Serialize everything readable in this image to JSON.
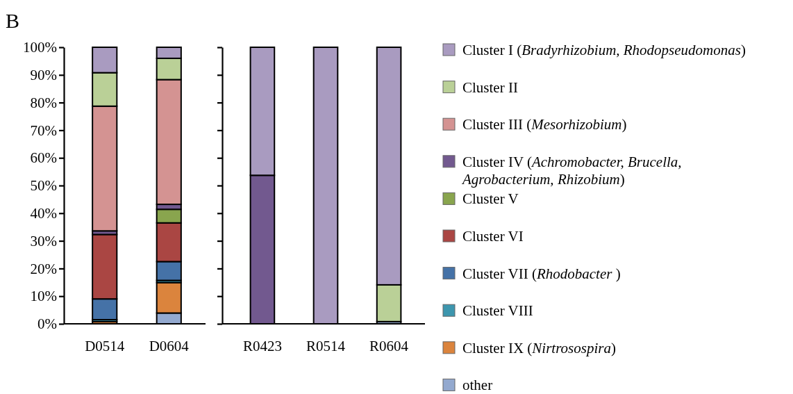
{
  "chart_data": [
    {
      "type": "bar",
      "title": "B",
      "stacked": true,
      "categories": [
        "D0514",
        "D0604"
      ],
      "ylim": [
        0,
        100
      ],
      "yticks": [
        {
          "value": 0,
          "label": "0%"
        },
        {
          "value": 10,
          "label": "10%"
        },
        {
          "value": 20,
          "label": "20%"
        },
        {
          "value": 30,
          "label": "30%"
        },
        {
          "value": 40,
          "label": "40%"
        },
        {
          "value": 50,
          "label": "50%"
        },
        {
          "value": 60,
          "label": "60%"
        },
        {
          "value": 70,
          "label": "70%"
        },
        {
          "value": 80,
          "label": "80%"
        },
        {
          "value": 90,
          "label": "90%"
        },
        {
          "value": 100,
          "label": "100%"
        }
      ],
      "legend": false,
      "series": [
        {
          "color": "#93a9cf",
          "values": [
            0,
            3.9
          ]
        },
        {
          "color": "#db843d",
          "values": [
            0.8,
            11.0
          ]
        },
        {
          "color": "#3d96ae",
          "values": [
            0.7,
            0.8
          ]
        },
        {
          "color": "#4572a7",
          "values": [
            7.5,
            6.8
          ]
        },
        {
          "color": "#aa4643",
          "values": [
            23.3,
            14.0
          ]
        },
        {
          "color": "#89a54e",
          "values": [
            0,
            4.9
          ]
        },
        {
          "color": "#72598f",
          "values": [
            1.3,
            1.8
          ]
        },
        {
          "color": "#d49392",
          "values": [
            45.1,
            45.1
          ]
        },
        {
          "color": "#bad097",
          "values": [
            12.1,
            7.7
          ]
        },
        {
          "color": "#a99bc0",
          "values": [
            9.2,
            4.0
          ]
        }
      ]
    },
    {
      "type": "bar",
      "stacked": true,
      "categories": [
        "R0423",
        "R0514",
        "R0604"
      ],
      "ylim": [
        0,
        100
      ],
      "yticks": [
        {
          "value": 0,
          "label": null
        },
        {
          "value": 10,
          "label": null
        },
        {
          "value": 20,
          "label": null
        },
        {
          "value": 30,
          "label": null
        },
        {
          "value": 40,
          "label": null
        },
        {
          "value": 50,
          "label": null
        },
        {
          "value": 60,
          "label": null
        },
        {
          "value": 70,
          "label": null
        },
        {
          "value": 80,
          "label": null
        },
        {
          "value": 90,
          "label": null
        },
        {
          "value": 100,
          "label": null
        }
      ],
      "tick_labels": "x",
      "legend": "right",
      "series": [
        {
          "name": "other",
          "color": "#93a9cf",
          "values": [
            0,
            0,
            0.8
          ]
        },
        {
          "name": "Cluster IX (Nirtrosospira)",
          "color": "#db843d",
          "values": [
            0,
            0,
            0
          ]
        },
        {
          "name": "Cluster VIII",
          "color": "#3d96ae",
          "values": [
            0,
            0,
            0
          ]
        },
        {
          "name": "Cluster VII (Rhodobacter )",
          "color": "#4572a7",
          "values": [
            0,
            0,
            0
          ]
        },
        {
          "name": "Cluster VI",
          "color": "#aa4643",
          "values": [
            0,
            0,
            0
          ]
        },
        {
          "name": "Cluster V",
          "color": "#89a54e",
          "values": [
            0,
            0,
            0
          ]
        },
        {
          "name": "Cluster IV (Achromobacter, Brucella, Agrobacterium, Rhizobium)",
          "color": "#72598f",
          "values": [
            53.7,
            0,
            0
          ]
        },
        {
          "name": "Cluster III (Mesorhizobium)",
          "color": "#d49392",
          "values": [
            0,
            0,
            0
          ]
        },
        {
          "name": "Cluster II",
          "color": "#bad097",
          "values": [
            0,
            0,
            13.3
          ]
        },
        {
          "name": "Cluster I (Bradyrhizobium, Rhodopseudomonas)",
          "color": "#a99bc0",
          "values": [
            46.3,
            100,
            85.9
          ]
        }
      ]
    }
  ]
}
